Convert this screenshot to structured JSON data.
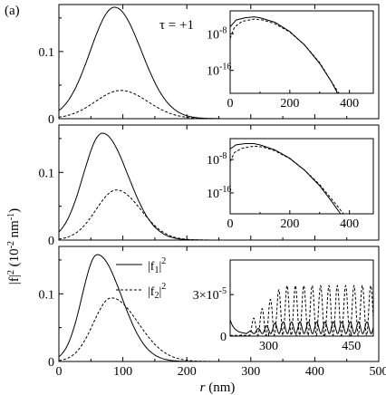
{
  "panel_label": "(a)",
  "ylabel": {
    "main": "|f|",
    "sup": "2",
    "units": " (10",
    "exp1": "-2",
    "mid": " nm",
    "exp2": "-1",
    "close": ")"
  },
  "xlabel": {
    "var": "r",
    "units": " (nm)"
  },
  "legend": [
    {
      "text": "|f",
      "sub": "1",
      "close": "|",
      "sup": "2",
      "style": "solid"
    },
    {
      "text": "|f",
      "sub": "2",
      "close": "|",
      "sup": "2",
      "style": "dashed"
    }
  ],
  "chart_data": [
    {
      "type": "line",
      "annotation": "τ = +1",
      "xlim": [
        0,
        500
      ],
      "ylim": [
        0,
        0.17
      ],
      "xticks": [
        "0",
        "100",
        "200",
        "300",
        "400",
        "500"
      ],
      "yticks": [
        {
          "v": 0.1,
          "label": "0.1"
        }
      ],
      "series": [
        {
          "style": "solid",
          "gauss": {
            "a": 0.166,
            "mu": 87,
            "sl": 38,
            "sr": 42
          }
        },
        {
          "style": "dashed",
          "gauss": {
            "a": 0.042,
            "mu": 97,
            "sl": 40,
            "sr": 42
          }
        }
      ],
      "inset": {
        "type": "line",
        "yscale": "log",
        "xlim": [
          0,
          480
        ],
        "ylim_exp": [
          -21,
          -3
        ],
        "xticks": [
          "0",
          "200",
          "400"
        ],
        "yticks": [
          {
            "base": "10",
            "exp": "-8",
            "e": -8
          },
          {
            "base": "10",
            "exp": "-16",
            "e": -16
          }
        ],
        "series": [
          {
            "style": "solid",
            "x": [
              0,
              20,
              50,
              80,
              100,
              150,
              200,
              250,
              300,
              340,
              360
            ],
            "logy": [
              -6.5,
              -5,
              -4.5,
              -4.3,
              -4.5,
              -5.5,
              -7.5,
              -10.5,
              -14.5,
              -18.5,
              -21
            ]
          },
          {
            "style": "dashed",
            "x": [
              0,
              15,
              40,
              80,
              110,
              150,
              200,
              250,
              300,
              340,
              365
            ],
            "logy": [
              -9,
              -6.5,
              -5.3,
              -4.8,
              -5,
              -5.8,
              -7.6,
              -10.5,
              -14.3,
              -18.5,
              -21
            ]
          }
        ]
      }
    },
    {
      "type": "line",
      "xlim": [
        0,
        500
      ],
      "ylim": [
        0,
        0.17
      ],
      "xticks": [
        "0",
        "100",
        "200",
        "300",
        "400",
        "500"
      ],
      "yticks": [
        {
          "v": 0.1,
          "label": "0.1"
        }
      ],
      "series": [
        {
          "style": "solid",
          "gauss": {
            "a": 0.158,
            "mu": 68,
            "sl": 30,
            "sr": 40
          }
        },
        {
          "style": "dashed",
          "gauss": {
            "a": 0.074,
            "mu": 90,
            "sl": 32,
            "sr": 38
          }
        }
      ],
      "inset": {
        "type": "line",
        "yscale": "log",
        "xlim": [
          0,
          480
        ],
        "ylim_exp": [
          -21,
          -3
        ],
        "xticks": [
          "0",
          "200",
          "400"
        ],
        "yticks": [
          {
            "base": "10",
            "exp": "-8",
            "e": -8
          },
          {
            "base": "10",
            "exp": "-16",
            "e": -16
          }
        ],
        "series": [
          {
            "style": "solid",
            "x": [
              0,
              20,
              50,
              80,
              100,
              150,
              200,
              250,
              300,
              340,
              370
            ],
            "logy": [
              -5.5,
              -4.5,
              -4.2,
              -4.2,
              -4.5,
              -5.7,
              -7.7,
              -10.6,
              -14.3,
              -18,
              -21
            ]
          },
          {
            "style": "dashed",
            "x": [
              0,
              15,
              40,
              80,
              110,
              150,
              200,
              250,
              300,
              350,
              380
            ],
            "logy": [
              -8.5,
              -6.3,
              -5.3,
              -4.8,
              -5,
              -5.9,
              -7.8,
              -10.6,
              -14,
              -18.3,
              -21
            ]
          }
        ]
      }
    },
    {
      "type": "line",
      "xlim": [
        0,
        500
      ],
      "ylim": [
        0,
        0.17
      ],
      "xticks": [
        "0",
        "100",
        "200",
        "300",
        "400",
        "500"
      ],
      "yticks": [
        {
          "v": 0.1,
          "label": "0.1"
        }
      ],
      "series": [
        {
          "style": "solid",
          "gauss": {
            "a": 0.158,
            "mu": 60,
            "sl": 24,
            "sr": 38
          }
        },
        {
          "style": "dashed",
          "gauss": {
            "a": 0.094,
            "mu": 82,
            "sl": 28,
            "sr": 42
          }
        }
      ],
      "inset": {
        "type": "line",
        "yscale": "linear",
        "xlim": [
          230,
          490
        ],
        "ylim": [
          0,
          5.5e-05
        ],
        "xticks": [
          "300",
          "450"
        ],
        "yticks": [
          {
            "v": 0,
            "label": "0"
          },
          {
            "v": 3e-05,
            "base": "3×10",
            "exp": "-5"
          }
        ],
        "series": [
          {
            "style": "solid",
            "osc": {
              "x0": 258,
              "period": 15.2,
              "amp": 8.5e-06,
              "base": 1.8e-06,
              "grow": 0.09,
              "decay_head": 1e-05
            }
          },
          {
            "style": "dashed",
            "osc": {
              "x0": 265,
              "period": 15.2,
              "amp": 3.6e-05,
              "base": 5e-07,
              "grow": 0.25,
              "decay_head": 0
            }
          }
        ]
      }
    }
  ]
}
